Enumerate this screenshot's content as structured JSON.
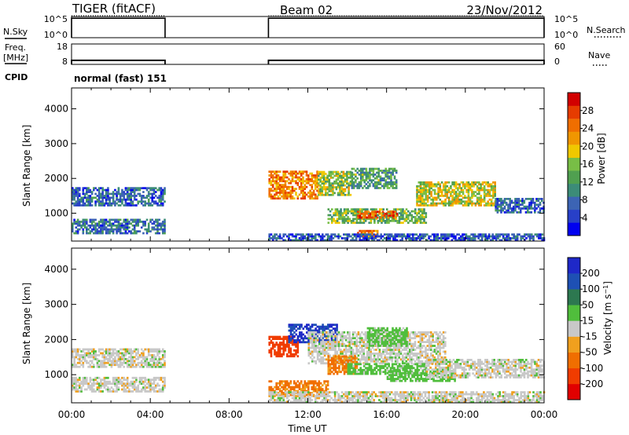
{
  "header": {
    "title": "TIGER (fitACF)",
    "beam": "Beam 02",
    "date": "23/Nov/2012"
  },
  "chart_data": [
    {
      "type": "line",
      "panel": "nsky-nsearch",
      "left_label": "N.Sky",
      "right_label": "N.Search",
      "left_ticks": [
        "10^5",
        "10^0"
      ],
      "right_ticks": [
        "10^5",
        "10^0"
      ],
      "x_range_hours": [
        0,
        24
      ],
      "segments_hours": [
        [
          0,
          4.75
        ],
        [
          10,
          24
        ]
      ],
      "trace_level_fraction": 0.92
    },
    {
      "type": "line",
      "panel": "freq-nave",
      "left_label": "Freq. [MHz]",
      "right_label": "Nave",
      "left_ticks": [
        "18",
        "8"
      ],
      "right_ticks": [
        "60",
        "0"
      ],
      "y_range_mhz": [
        8,
        18
      ],
      "frequency_mhz": 10,
      "segments_hours": [
        [
          0,
          4.75
        ],
        [
          10,
          24
        ]
      ]
    },
    {
      "type": "table",
      "panel": "cpid",
      "label": "CPID",
      "value": "normal (fast) 151"
    },
    {
      "type": "heatmap",
      "panel": "power",
      "ylabel": "Slant Range [km]",
      "xlabel": "Time UT",
      "yticks": [
        "4000",
        "3000",
        "2000",
        "1000"
      ],
      "ylim": [
        200,
        4600
      ],
      "xlim_hours": [
        0,
        24
      ],
      "colorbar": {
        "label": "Power [dB]",
        "ticks": [
          "28",
          "24",
          "20",
          "16",
          "12",
          "8",
          "4"
        ],
        "range": [
          0,
          32
        ],
        "colors": [
          "#0000f0",
          "#2840c8",
          "#3c64b4",
          "#3c8c78",
          "#50a050",
          "#78be46",
          "#f0c800",
          "#f09600",
          "#f06e00",
          "#e63c00",
          "#d20000"
        ]
      },
      "echo_regions": [
        {
          "t_start": 0.0,
          "t_end": 4.75,
          "r_start": 1200,
          "r_end": 1700,
          "power_db": 6
        },
        {
          "t_start": 0.0,
          "t_end": 4.75,
          "r_start": 400,
          "r_end": 800,
          "power_db": 7
        },
        {
          "t_start": 10.0,
          "t_end": 12.5,
          "r_start": 1400,
          "r_end": 2200,
          "power_db": 24
        },
        {
          "t_start": 12.5,
          "t_end": 14.2,
          "r_start": 1500,
          "r_end": 2200,
          "power_db": 16
        },
        {
          "t_start": 14.2,
          "t_end": 16.5,
          "r_start": 1700,
          "r_end": 2300,
          "power_db": 12
        },
        {
          "t_start": 13.0,
          "t_end": 18.0,
          "r_start": 700,
          "r_end": 1100,
          "power_db": 14
        },
        {
          "t_start": 14.5,
          "t_end": 16.5,
          "r_start": 850,
          "r_end": 1050,
          "power_db": 28
        },
        {
          "t_start": 14.5,
          "t_end": 15.5,
          "r_start": 300,
          "r_end": 500,
          "power_db": 24
        },
        {
          "t_start": 17.5,
          "t_end": 21.5,
          "r_start": 1200,
          "r_end": 1900,
          "power_db": 18
        },
        {
          "t_start": 21.5,
          "t_end": 24.0,
          "r_start": 1000,
          "r_end": 1400,
          "power_db": 6
        },
        {
          "t_start": 10.0,
          "t_end": 24.0,
          "r_start": 200,
          "r_end": 400,
          "power_db": 5
        }
      ]
    },
    {
      "type": "heatmap",
      "panel": "velocity",
      "ylabel": "Slant Range [km]",
      "xlabel": "Time UT",
      "yticks": [
        "4000",
        "3000",
        "2000",
        "1000"
      ],
      "ylim": [
        200,
        4600
      ],
      "xlim_hours": [
        0,
        24
      ],
      "xticks": [
        "00:00",
        "04:00",
        "08:00",
        "12:00",
        "16:00",
        "20:00",
        "00:00"
      ],
      "colorbar": {
        "label": "Velocity [m s^-1]",
        "ticks": [
          "200",
          "100",
          "50",
          "15",
          "-15",
          "-50",
          "-100",
          "-200"
        ],
        "colors": [
          "#1e28c8",
          "#1e50b4",
          "#2d7850",
          "#50be3c",
          "#c8c8c8",
          "#f0a01e",
          "#f06e00",
          "#f03c00",
          "#e10000"
        ]
      },
      "echo_regions": [
        {
          "t_start": 0.0,
          "t_end": 4.75,
          "r_start": 1200,
          "r_end": 1700,
          "velocity": 0
        },
        {
          "t_start": 0.0,
          "t_end": 4.75,
          "r_start": 500,
          "r_end": 900,
          "velocity": 0
        },
        {
          "t_start": 10.0,
          "t_end": 11.5,
          "r_start": 1500,
          "r_end": 2100,
          "velocity": -150
        },
        {
          "t_start": 11.0,
          "t_end": 13.5,
          "r_start": 1900,
          "r_end": 2400,
          "velocity": 200
        },
        {
          "t_start": 12.0,
          "t_end": 19.0,
          "r_start": 1300,
          "r_end": 2200,
          "velocity": 0
        },
        {
          "t_start": 10.0,
          "t_end": 13.0,
          "r_start": 400,
          "r_end": 800,
          "velocity": -60
        },
        {
          "t_start": 13.0,
          "t_end": 14.5,
          "r_start": 1000,
          "r_end": 1500,
          "velocity": -60
        },
        {
          "t_start": 14.0,
          "t_end": 18.0,
          "r_start": 1000,
          "r_end": 1300,
          "velocity": 30
        },
        {
          "t_start": 16.0,
          "t_end": 19.5,
          "r_start": 800,
          "r_end": 1100,
          "velocity": 30
        },
        {
          "t_start": 15.0,
          "t_end": 17.0,
          "r_start": 1800,
          "r_end": 2300,
          "velocity": 30
        },
        {
          "t_start": 18.0,
          "t_end": 24.0,
          "r_start": 900,
          "r_end": 1400,
          "velocity": 0
        },
        {
          "t_start": 10.0,
          "t_end": 24.0,
          "r_start": 200,
          "r_end": 500,
          "velocity": 0
        }
      ]
    }
  ]
}
